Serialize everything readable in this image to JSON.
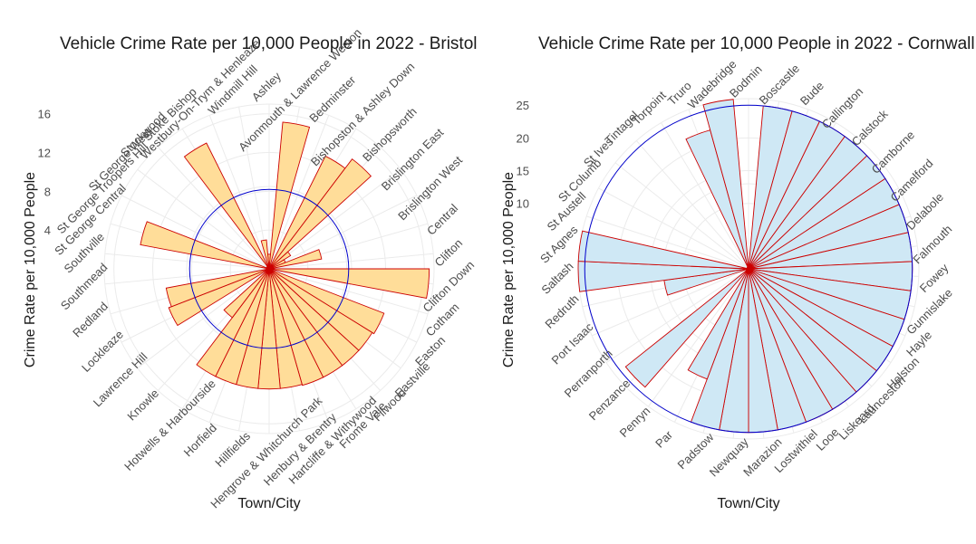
{
  "chart_data": [
    {
      "type": "bar",
      "coord": "polar",
      "title": "Vehicle Crime Rate per 10,000 People in 2022 - Bristol",
      "xlabel": "Town/City",
      "ylabel": "Crime Rate per 10,000 People",
      "ylim": [
        0,
        17
      ],
      "yticks": [
        4,
        8,
        12,
        16
      ],
      "mean_line": 8.2,
      "fill_color": "#ffdd99",
      "edge_color": "#cc0000",
      "mean_line_color": "#0000cc",
      "categories": [
        "Ashley",
        "Avonmouth & Lawrence Weston",
        "Bedminster",
        "Bishopston & Ashley Down",
        "Bishopsworth",
        "Brislington East",
        "Brislington West",
        "Central",
        "Clifton",
        "Clifton Down",
        "Cotham",
        "Easton",
        "Eastville",
        "Filwood",
        "Frome Vale",
        "Hartcliffe & Withywood",
        "Henbury & Brentry",
        "Hengrove & Whitchurch Park",
        "Hillfields",
        "Horfield",
        "Hotwells & Harbourside",
        "Knowle",
        "Lawrence Hill",
        "Lockleaze",
        "Redland",
        "Southmead",
        "Southville",
        "St George Central",
        "St George Troopers Hill",
        "St George West",
        "Stockwood",
        "Stoke Bishop",
        "Westbury-On-Trym & Henleaze",
        "Windmill Hill"
      ],
      "values": [
        1.5,
        15.2,
        0.3,
        13.0,
        14.2,
        2.6,
        1.8,
        5.5,
        0.3,
        16.5,
        0.2,
        12.7,
        12.5,
        12.5,
        12.5,
        12.5,
        12.4,
        12.4,
        12.4,
        12.4,
        12.4,
        6.3,
        0.2,
        11.1,
        10.8,
        0.3,
        0.2,
        13.5,
        0.3,
        0.3,
        0.3,
        14.5,
        0.2,
        3.0
      ]
    },
    {
      "type": "bar",
      "coord": "polar",
      "title": "Vehicle Crime Rate per 10,000 People in 2022 - Cornwall",
      "xlabel": "Town/City",
      "ylabel": "Crime Rate per 10,000 People",
      "ylim": [
        0,
        26
      ],
      "yticks": [
        10,
        15,
        20,
        25
      ],
      "mean_line": 25.0,
      "fill_color": "#cfe8f5",
      "edge_color": "#cc0000",
      "mean_line_color": "#0000cc",
      "categories": [
        "Bodmin",
        "Boscastle",
        "Bude",
        "Callington",
        "Calstock",
        "Camborne",
        "Camelford",
        "Delabole",
        "Falmouth",
        "Fowey",
        "Gunnislake",
        "Hayle",
        "Helston",
        "Launceston",
        "Liskeard",
        "Looe",
        "Lostwithiel",
        "Marazion",
        "Newquay",
        "Padstow",
        "Par",
        "Penryn",
        "Penzance",
        "Perranporth",
        "Port Isaac",
        "Redruth",
        "Saltash",
        "St Agnes",
        "St Austell",
        "St Columb",
        "St Ives",
        "Tintagel",
        "Torpoint",
        "Truro",
        "Wadebridge"
      ],
      "values": [
        0.5,
        25.0,
        25.0,
        25.0,
        25.0,
        25.0,
        25.0,
        25.0,
        25.0,
        25.0,
        25.0,
        25.0,
        25.0,
        25.0,
        25.0,
        25.0,
        25.0,
        25.0,
        25.0,
        25.0,
        18.0,
        0.6,
        24.0,
        0.4,
        0.3,
        13.0,
        26.0,
        26.0,
        0.2,
        0.2,
        0.2,
        0.3,
        0.3,
        22.0,
        26.0
      ]
    }
  ]
}
